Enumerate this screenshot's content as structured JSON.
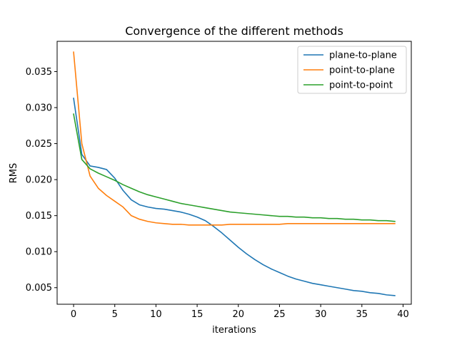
{
  "chart_data": {
    "type": "line",
    "title": "Convergence of the different methods",
    "xlabel": "iterations",
    "ylabel": "RMS",
    "xlim": [
      -2,
      41
    ],
    "ylim": [
      0.0027,
      0.0392
    ],
    "xticks": [
      0,
      5,
      10,
      15,
      20,
      25,
      30,
      35,
      40
    ],
    "xtick_labels": [
      "0",
      "5",
      "10",
      "15",
      "20",
      "25",
      "30",
      "35",
      "40"
    ],
    "yticks": [
      0.005,
      0.01,
      0.015,
      0.02,
      0.025,
      0.03,
      0.035
    ],
    "ytick_labels": [
      "0.005",
      "0.010",
      "0.015",
      "0.020",
      "0.025",
      "0.030",
      "0.035"
    ],
    "legend_position": "top-right",
    "grid": false,
    "x": [
      0,
      1,
      2,
      3,
      4,
      5,
      6,
      7,
      8,
      9,
      10,
      11,
      12,
      13,
      14,
      15,
      16,
      17,
      18,
      19,
      20,
      21,
      22,
      23,
      24,
      25,
      26,
      27,
      28,
      29,
      30,
      31,
      32,
      33,
      34,
      35,
      36,
      37,
      38,
      39
    ],
    "series": [
      {
        "name": "plane-to-plane",
        "color": "#1f77b4",
        "values": [
          0.0313,
          0.0235,
          0.0219,
          0.0217,
          0.0214,
          0.0202,
          0.0185,
          0.0172,
          0.0165,
          0.0162,
          0.016,
          0.0159,
          0.0157,
          0.0155,
          0.0152,
          0.0148,
          0.0143,
          0.0135,
          0.0126,
          0.0116,
          0.0106,
          0.0097,
          0.0089,
          0.0082,
          0.0076,
          0.0071,
          0.0066,
          0.0062,
          0.0059,
          0.0056,
          0.0054,
          0.0052,
          0.005,
          0.0048,
          0.0046,
          0.0045,
          0.0043,
          0.0042,
          0.004,
          0.0039
        ]
      },
      {
        "name": "point-to-plane",
        "color": "#ff7f0e",
        "values": [
          0.0377,
          0.025,
          0.0205,
          0.0188,
          0.0178,
          0.017,
          0.0162,
          0.015,
          0.0145,
          0.0142,
          0.014,
          0.0139,
          0.0138,
          0.0138,
          0.0137,
          0.0137,
          0.0137,
          0.0137,
          0.0137,
          0.0138,
          0.0138,
          0.0138,
          0.0138,
          0.0138,
          0.0138,
          0.0138,
          0.0139,
          0.0139,
          0.0139,
          0.0139,
          0.0139,
          0.0139,
          0.0139,
          0.0139,
          0.0139,
          0.0139,
          0.0139,
          0.0139,
          0.0139,
          0.0139
        ]
      },
      {
        "name": "point-to-point",
        "color": "#2ca02c",
        "values": [
          0.0291,
          0.0228,
          0.0215,
          0.0209,
          0.0204,
          0.0199,
          0.0193,
          0.0188,
          0.0183,
          0.0179,
          0.0176,
          0.0173,
          0.017,
          0.0167,
          0.0165,
          0.0163,
          0.0161,
          0.0159,
          0.0157,
          0.0155,
          0.0154,
          0.0153,
          0.0152,
          0.0151,
          0.015,
          0.0149,
          0.0149,
          0.0148,
          0.0148,
          0.0147,
          0.0147,
          0.0146,
          0.0146,
          0.0145,
          0.0145,
          0.0144,
          0.0144,
          0.0143,
          0.0143,
          0.0142
        ]
      }
    ]
  }
}
